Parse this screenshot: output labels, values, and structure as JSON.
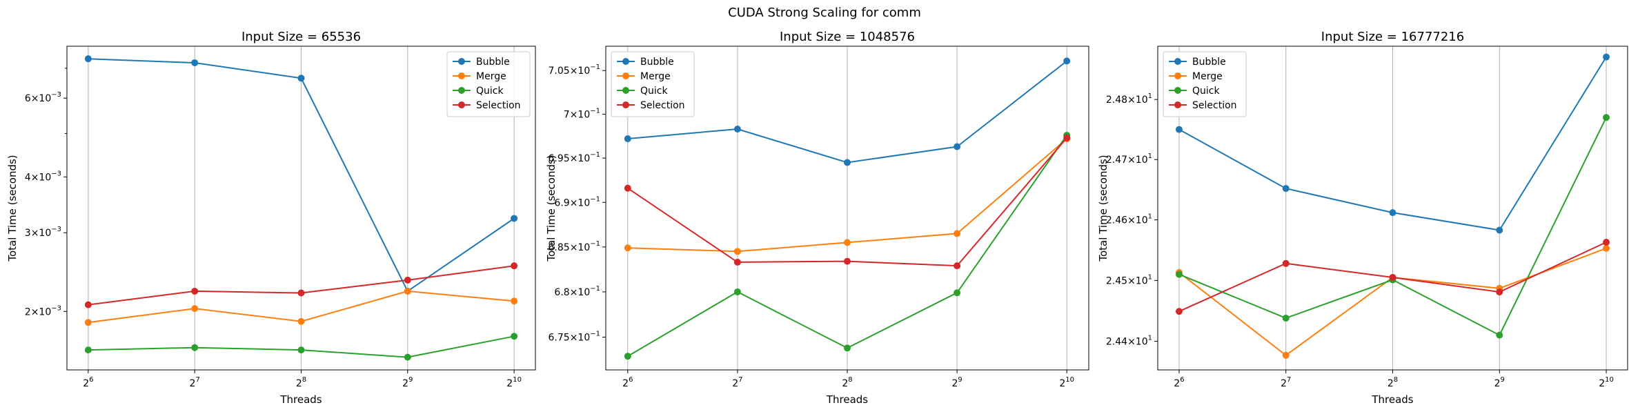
{
  "figure": {
    "title": "CUDA Strong Scaling for comm"
  },
  "colors": {
    "Bubble": "#1f77b4",
    "Merge": "#ff7f0e",
    "Quick": "#2ca02c",
    "Selection": "#d62728"
  },
  "chart_data": [
    {
      "type": "line",
      "title": "Input Size = 65536",
      "xlabel": "Threads",
      "ylabel": "Total Time (seconds)",
      "xscale": "log2",
      "yscale": "log",
      "x": [
        64,
        128,
        256,
        512,
        1024
      ],
      "x_tick_labels": [
        {
          "base": "2",
          "exp": "6"
        },
        {
          "base": "2",
          "exp": "7"
        },
        {
          "base": "2",
          "exp": "8"
        },
        {
          "base": "2",
          "exp": "9"
        },
        {
          "base": "2",
          "exp": "10"
        }
      ],
      "y_tick_labels": [
        {
          "value": 0.002,
          "mant": "2",
          "base": "10",
          "exp": "−3"
        },
        {
          "value": 0.003,
          "mant": "3",
          "base": "10",
          "exp": "−3"
        },
        {
          "value": 0.004,
          "mant": "4",
          "base": "10",
          "exp": "−3"
        },
        {
          "value": 0.006,
          "mant": "6",
          "base": "10",
          "exp": "−3"
        }
      ],
      "y_minor_ticks": [
        0.005,
        0.007
      ],
      "ylim": [
        0.00148,
        0.00784
      ],
      "grid": "x",
      "legend": "top-right",
      "series": [
        {
          "name": "Bubble",
          "values": [
            0.00735,
            0.0072,
            0.00665,
            0.00222,
            0.00323
          ]
        },
        {
          "name": "Merge",
          "values": [
            0.00189,
            0.00203,
            0.0019,
            0.00222,
            0.00211
          ]
        },
        {
          "name": "Quick",
          "values": [
            0.00164,
            0.00166,
            0.00164,
            0.00158,
            0.00176
          ]
        },
        {
          "name": "Selection",
          "values": [
            0.00207,
            0.00222,
            0.0022,
            0.00235,
            0.00253
          ]
        }
      ]
    },
    {
      "type": "line",
      "title": "Input Size = 1048576",
      "xlabel": "Threads",
      "ylabel": "Total Time (seconds)",
      "xscale": "log2",
      "yscale": "log",
      "x": [
        64,
        128,
        256,
        512,
        1024
      ],
      "x_tick_labels": [
        {
          "base": "2",
          "exp": "6"
        },
        {
          "base": "2",
          "exp": "7"
        },
        {
          "base": "2",
          "exp": "8"
        },
        {
          "base": "2",
          "exp": "9"
        },
        {
          "base": "2",
          "exp": "10"
        }
      ],
      "y_tick_labels": [
        {
          "value": 0.675,
          "mant": "6.75",
          "base": "10",
          "exp": "−1"
        },
        {
          "value": 0.68,
          "mant": "6.8",
          "base": "10",
          "exp": "−1"
        },
        {
          "value": 0.685,
          "mant": "6.85",
          "base": "10",
          "exp": "−1"
        },
        {
          "value": 0.69,
          "mant": "6.9",
          "base": "10",
          "exp": "−1"
        },
        {
          "value": 0.695,
          "mant": "6.95",
          "base": "10",
          "exp": "−1"
        },
        {
          "value": 0.7,
          "mant": "7",
          "base": "10",
          "exp": "−1"
        },
        {
          "value": 0.705,
          "mant": "7.05",
          "base": "10",
          "exp": "−1"
        }
      ],
      "y_minor_ticks": [],
      "ylim": [
        0.6714,
        0.7078
      ],
      "grid": "x",
      "legend": "top-left",
      "series": [
        {
          "name": "Bubble",
          "values": [
            0.6972,
            0.6983,
            0.6945,
            0.6963,
            0.7061
          ]
        },
        {
          "name": "Merge",
          "values": [
            0.6849,
            0.6845,
            0.6855,
            0.6865,
            0.6972
          ]
        },
        {
          "name": "Quick",
          "values": [
            0.6729,
            0.68,
            0.6738,
            0.6799,
            0.6976
          ]
        },
        {
          "name": "Selection",
          "values": [
            0.6916,
            0.6833,
            0.6834,
            0.6829,
            0.6973
          ]
        }
      ]
    },
    {
      "type": "line",
      "title": "Input Size = 16777216",
      "xlabel": "Threads",
      "ylabel": "Total Time (seconds)",
      "xscale": "log2",
      "yscale": "log",
      "x": [
        64,
        128,
        256,
        512,
        1024
      ],
      "x_tick_labels": [
        {
          "base": "2",
          "exp": "6"
        },
        {
          "base": "2",
          "exp": "7"
        },
        {
          "base": "2",
          "exp": "8"
        },
        {
          "base": "2",
          "exp": "9"
        },
        {
          "base": "2",
          "exp": "10"
        }
      ],
      "y_tick_labels": [
        {
          "value": 24.4,
          "mant": "2.44",
          "base": "10",
          "exp": "1"
        },
        {
          "value": 24.5,
          "mant": "2.45",
          "base": "10",
          "exp": "1"
        },
        {
          "value": 24.6,
          "mant": "2.46",
          "base": "10",
          "exp": "1"
        },
        {
          "value": 24.7,
          "mant": "2.47",
          "base": "10",
          "exp": "1"
        },
        {
          "value": 24.8,
          "mant": "2.48",
          "base": "10",
          "exp": "1"
        }
      ],
      "y_minor_ticks": [],
      "ylim": [
        24.353,
        24.889
      ],
      "grid": "x",
      "legend": "top-left",
      "series": [
        {
          "name": "Bubble",
          "values": [
            24.75,
            24.652,
            24.612,
            24.583,
            24.871
          ]
        },
        {
          "name": "Merge",
          "values": [
            24.513,
            24.377,
            24.505,
            24.487,
            24.553
          ]
        },
        {
          "name": "Quick",
          "values": [
            24.51,
            24.438,
            24.501,
            24.41,
            24.77
          ]
        },
        {
          "name": "Selection",
          "values": [
            24.449,
            24.528,
            24.505,
            24.481,
            24.563
          ]
        }
      ]
    }
  ]
}
